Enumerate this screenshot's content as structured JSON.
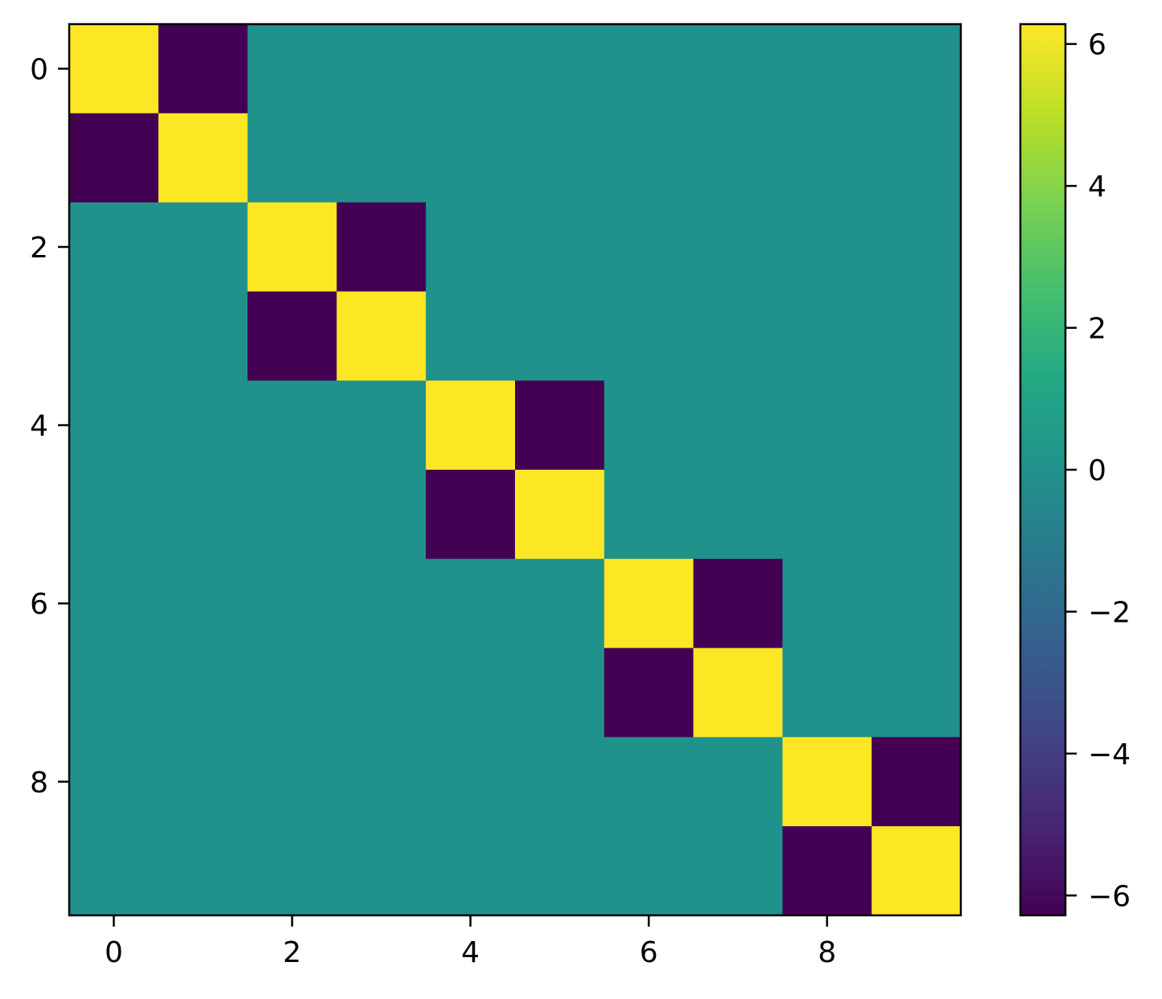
{
  "chart_data": {
    "type": "heatmap",
    "title": "",
    "xlabel": "",
    "ylabel": "",
    "rows": 10,
    "cols": 10,
    "values": [
      [
        6.28,
        -6.28,
        0,
        0,
        0,
        0,
        0,
        0,
        0,
        0
      ],
      [
        -6.28,
        6.28,
        0,
        0,
        0,
        0,
        0,
        0,
        0,
        0
      ],
      [
        0,
        0,
        6.28,
        -6.28,
        0,
        0,
        0,
        0,
        0,
        0
      ],
      [
        0,
        0,
        -6.28,
        6.28,
        0,
        0,
        0,
        0,
        0,
        0
      ],
      [
        0,
        0,
        0,
        0,
        6.28,
        -6.28,
        0,
        0,
        0,
        0
      ],
      [
        0,
        0,
        0,
        0,
        -6.28,
        6.28,
        0,
        0,
        0,
        0
      ],
      [
        0,
        0,
        0,
        0,
        0,
        0,
        6.28,
        -6.28,
        0,
        0
      ],
      [
        0,
        0,
        0,
        0,
        0,
        0,
        -6.28,
        6.28,
        0,
        0
      ],
      [
        0,
        0,
        0,
        0,
        0,
        0,
        0,
        0,
        6.28,
        -6.28
      ],
      [
        0,
        0,
        0,
        0,
        0,
        0,
        0,
        0,
        -6.28,
        6.28
      ]
    ],
    "x_ticks": [
      "0",
      "2",
      "4",
      "6",
      "8"
    ],
    "y_ticks": [
      "0",
      "2",
      "4",
      "6",
      "8"
    ],
    "colorbar": {
      "vmin": -6.28,
      "vmax": 6.28,
      "colormap": "viridis",
      "ticks": [
        "−6",
        "−4",
        "−2",
        "0",
        "2",
        "4",
        "6"
      ]
    },
    "grid": false
  }
}
